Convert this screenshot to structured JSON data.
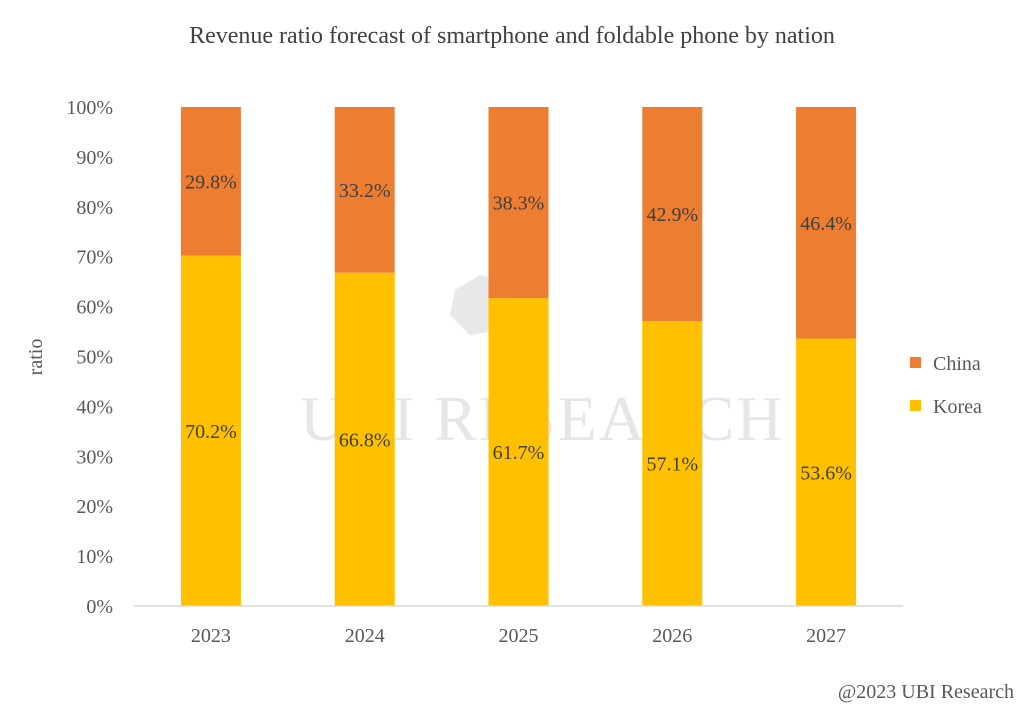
{
  "chart_data": {
    "type": "bar",
    "stacked": true,
    "title": "Revenue ratio forecast of smartphone and foldable phone by nation",
    "xlabel": "",
    "ylabel": "ratio",
    "categories": [
      "2023",
      "2024",
      "2025",
      "2026",
      "2027"
    ],
    "series": [
      {
        "name": "Korea",
        "color": "#FFC000",
        "values": [
          70.2,
          66.8,
          61.7,
          57.1,
          53.6
        ],
        "labels": [
          "70.2%",
          "66.8%",
          "61.7%",
          "57.1%",
          "53.6%"
        ]
      },
      {
        "name": "China",
        "color": "#ED7D31",
        "values": [
          29.8,
          33.2,
          38.3,
          42.9,
          46.4
        ],
        "labels": [
          "29.8%",
          "33.2%",
          "38.3%",
          "42.9%",
          "46.4%"
        ]
      }
    ],
    "ylim": [
      0,
      100
    ],
    "yticks": [
      "0%",
      "10%",
      "20%",
      "30%",
      "40%",
      "50%",
      "60%",
      "70%",
      "80%",
      "90%",
      "100%"
    ],
    "grid": false,
    "legend": {
      "position": "right",
      "entries": [
        "China",
        "Korea"
      ]
    },
    "watermark": "UBI RESEARCH",
    "credit": "@2023 UBI Research"
  }
}
